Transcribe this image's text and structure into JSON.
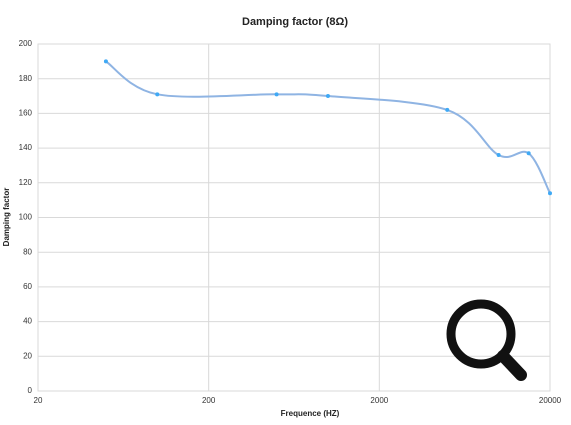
{
  "chart_data": {
    "type": "line",
    "title": "Damping factor (8Ω)",
    "x_label": "Frequence (HZ)",
    "y_label": "Damping factor",
    "x": [
      50,
      100,
      500,
      1000,
      5000,
      10000,
      15000,
      20000
    ],
    "series": [
      {
        "name": "Damping factor",
        "color": "#8fb4e3",
        "marker_color": "#3fa9f5",
        "values": [
          190,
          171,
          171,
          170,
          162,
          136,
          137,
          114
        ]
      }
    ],
    "xlim": [
      20,
      20000
    ],
    "xticks": [
      20,
      200,
      2000,
      20000
    ],
    "xscale": "log",
    "ylim": [
      0,
      200
    ],
    "yticks": [
      0,
      20,
      40,
      60,
      80,
      100,
      120,
      140,
      160,
      180,
      200
    ],
    "grid": true
  }
}
